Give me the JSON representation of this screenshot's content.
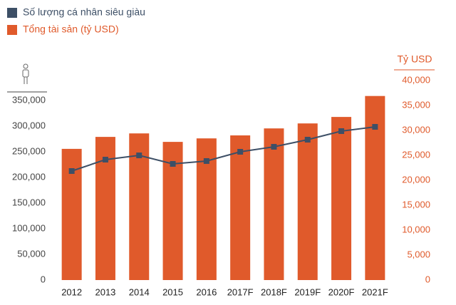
{
  "chart_data": {
    "type": "bar",
    "categories": [
      "2012",
      "2013",
      "2014",
      "2015",
      "2016",
      "2017F",
      "2018F",
      "2019F",
      "2020F",
      "2021F"
    ],
    "series": [
      {
        "name": "Số lượng cá nhân siêu giàu",
        "type": "line",
        "color": "#3d4f66",
        "values": [
          212500,
          234700,
          243000,
          226400,
          232000,
          250000,
          259700,
          273600,
          290300,
          298600
        ]
      },
      {
        "name": "Tổng tài sản (tỷ USD)",
        "type": "bar",
        "axis": "y2",
        "color": "#e05a2b",
        "values": [
          26300,
          28700,
          29400,
          27700,
          28400,
          29000,
          30400,
          31400,
          32700,
          36900
        ]
      }
    ],
    "ylim": [
      0,
      350000
    ],
    "yticks": [
      0,
      {
        "value": 50000,
        "label": "50,000"
      },
      {
        "value": 100000,
        "label": "100,000"
      },
      {
        "value": 150000,
        "label": "150,000"
      },
      {
        "value": 200000,
        "label": "200,000"
      },
      {
        "value": 250000,
        "label": "250,000"
      },
      {
        "value": 300000,
        "label": "300,000"
      },
      {
        "value": 350000,
        "label": "350,000"
      }
    ],
    "y2label": "Tỷ USD",
    "y2lim": [
      0,
      40000
    ],
    "y2ticks": [
      0,
      {
        "value": 5000,
        "label": "5,000"
      },
      {
        "value": 10000,
        "label": "10,000"
      },
      {
        "value": 15000,
        "label": "15,000"
      },
      {
        "value": 20000,
        "label": "20,000"
      },
      {
        "value": 25000,
        "label": "25,000"
      },
      {
        "value": 30000,
        "label": "30,000"
      },
      {
        "value": 35000,
        "label": "35,000"
      },
      {
        "value": 40000,
        "label": "40,000"
      }
    ]
  }
}
